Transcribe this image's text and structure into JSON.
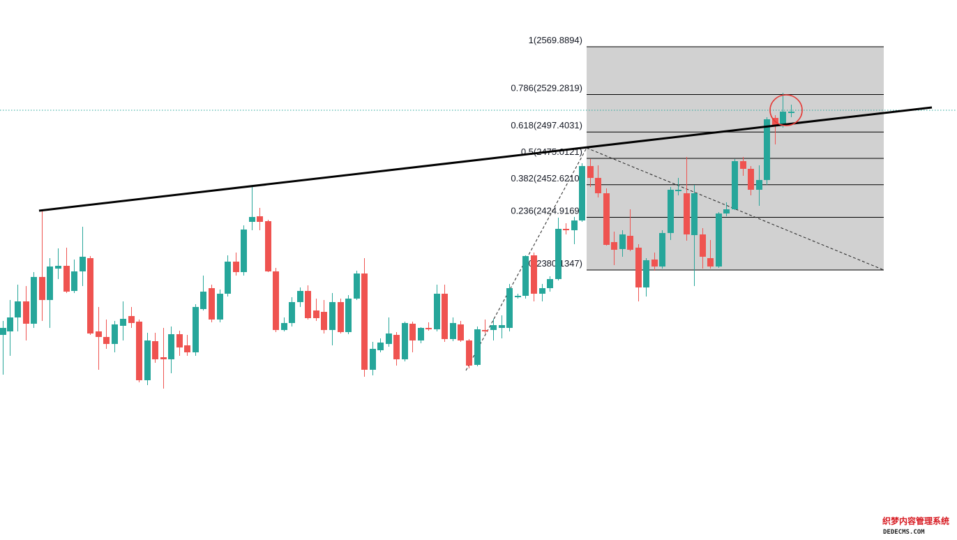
{
  "chart_data": {
    "type": "candlestick",
    "colors": {
      "up": "#26a69a",
      "down": "#ef5350",
      "trendline": "#000000",
      "fib_fill": "#d1d1d1",
      "fib_line": "#000000",
      "current_price_line": "#26a69a",
      "highlight_circle": "#e53935",
      "watermark_red": "#d71920",
      "watermark_black": "#222222"
    },
    "fibonacci": {
      "levels": [
        {
          "ratio": "1",
          "price": 2569.8894,
          "label": "1(2569.8894)"
        },
        {
          "ratio": "0.786",
          "price": 2529.2819,
          "label": "0.786(2529.2819)"
        },
        {
          "ratio": "0.618",
          "price": 2497.4031,
          "label": "0.618(2497.4031)"
        },
        {
          "ratio": "0.5",
          "price": 2475.0121,
          "label": "0.5(2475.0121)"
        },
        {
          "ratio": "0.382",
          "price": 2452.621,
          "label": "0.382(2452.6210)"
        },
        {
          "ratio": "0.236",
          "price": 2424.9169,
          "label": "0.236(2424.9169)"
        },
        {
          "ratio": "0",
          "price": 2380.1347,
          "label": "0(2380.1347)"
        }
      ]
    },
    "candles": [
      [
        0,
        0,
        0,
        0,
        0
      ]
    ]
  },
  "watermark": {
    "line1": "织梦内容管理系统",
    "line2": "DEDECMS.COM"
  }
}
